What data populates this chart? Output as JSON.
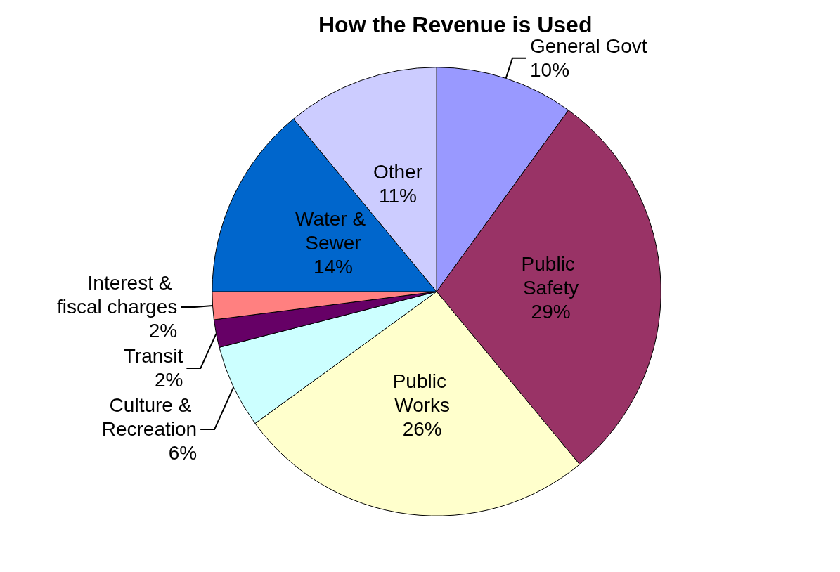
{
  "chart_data": {
    "type": "pie",
    "title": "How the Revenue is Used",
    "categories": [
      "General Govt",
      "Public Safety",
      "Public Works",
      "Culture & Recreation",
      "Transit",
      "Interest & fiscal charges",
      "Water & Sewer",
      "Other"
    ],
    "values": [
      10,
      29,
      26,
      6,
      2,
      2,
      14,
      11
    ],
    "colors": [
      "#9999ff",
      "#993366",
      "#ffffcc",
      "#ccffff",
      "#660066",
      "#ff8080",
      "#0066cc",
      "#ccccff"
    ],
    "value_labels": [
      "10%",
      "29%",
      "26%",
      "6%",
      "2%",
      "2%",
      "14%",
      "11%"
    ],
    "legend": false
  }
}
